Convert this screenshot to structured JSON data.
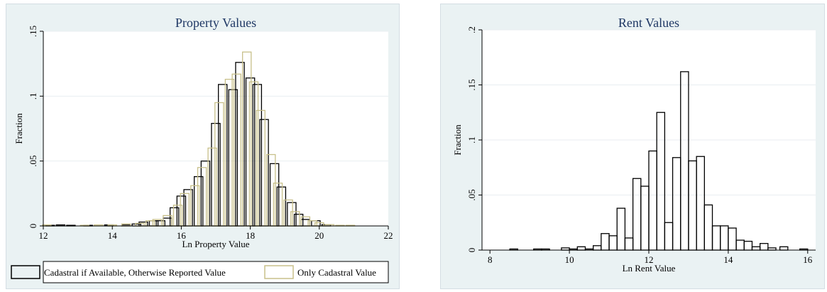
{
  "chart_data": [
    {
      "type": "bar",
      "title": "Property Values",
      "xlabel": "Ln Property Value",
      "ylabel": "Fraction",
      "xlim": [
        12,
        22
      ],
      "ylim": [
        0,
        0.15
      ],
      "xticks": [
        "12",
        "14",
        "16",
        "18",
        "20",
        "22"
      ],
      "yticks": [
        ".15",
        ".1",
        ".05",
        "0"
      ],
      "xtick_values": [
        12,
        14,
        16,
        18,
        20,
        22
      ],
      "ytick_values": [
        0.15,
        0.1,
        0.05,
        0
      ],
      "grid": true,
      "legend": "bottom",
      "series": [
        {
          "name": "Cadastral if Available, Otherwise Reported Value",
          "color": "#000000",
          "bin_width": 0.25,
          "x": [
            12.2,
            12.5,
            12.8,
            13.3,
            13.9,
            14.4,
            14.7,
            14.9,
            15.2,
            15.4,
            15.6,
            15.8,
            16.0,
            16.2,
            16.5,
            16.7,
            17.0,
            17.2,
            17.5,
            17.7,
            18.0,
            18.2,
            18.4,
            18.7,
            18.9,
            19.2,
            19.4,
            19.6,
            19.9,
            20.2
          ],
          "values": [
            0.0005,
            0.0008,
            0.0005,
            0.0005,
            0.0008,
            0.001,
            0.0015,
            0.003,
            0.004,
            0.004,
            0.006,
            0.014,
            0.023,
            0.028,
            0.038,
            0.05,
            0.079,
            0.109,
            0.105,
            0.126,
            0.114,
            0.109,
            0.082,
            0.048,
            0.03,
            0.018,
            0.009,
            0.005,
            0.004,
            0.001
          ]
        },
        {
          "name": "Only Cadastral Value",
          "color": "#c8c08a",
          "bin_width": 0.25,
          "x": [
            12.1,
            13.2,
            13.6,
            14.0,
            14.4,
            14.8,
            15.1,
            15.3,
            15.6,
            15.9,
            16.1,
            16.4,
            16.6,
            16.9,
            17.1,
            17.4,
            17.6,
            17.9,
            18.1,
            18.3,
            18.6,
            18.8,
            19.1,
            19.3,
            19.6,
            19.8,
            20.0,
            20.3,
            20.6,
            20.9
          ],
          "values": [
            0.0008,
            0.0005,
            0.0008,
            0.0008,
            0.0015,
            0.002,
            0.004,
            0.005,
            0.008,
            0.016,
            0.025,
            0.031,
            0.045,
            0.06,
            0.095,
            0.113,
            0.117,
            0.134,
            0.111,
            0.089,
            0.055,
            0.033,
            0.02,
            0.011,
            0.007,
            0.004,
            0.0025,
            0.001,
            0.0005,
            0.0005
          ]
        }
      ]
    },
    {
      "type": "bar",
      "title": "Rent Values",
      "xlabel": "Ln Rent Value",
      "ylabel": "Fraction",
      "xlim": [
        7.8,
        16.2
      ],
      "ylim": [
        0,
        0.2
      ],
      "xticks": [
        "8",
        "10",
        "12",
        "14",
        "16"
      ],
      "yticks": [
        ".2",
        ".15",
        ".1",
        ".05",
        "0"
      ],
      "xtick_values": [
        8,
        10,
        12,
        14,
        16
      ],
      "ytick_values": [
        0.2,
        0.15,
        0.1,
        0.05,
        0
      ],
      "grid": true,
      "series": [
        {
          "color": "#000000",
          "bin_width": 0.2,
          "x": [
            8.6,
            9.2,
            9.4,
            9.9,
            10.1,
            10.3,
            10.5,
            10.7,
            10.9,
            11.1,
            11.3,
            11.5,
            11.7,
            11.9,
            12.1,
            12.3,
            12.5,
            12.7,
            12.9,
            13.1,
            13.3,
            13.5,
            13.7,
            13.9,
            14.1,
            14.3,
            14.5,
            14.7,
            14.9,
            15.1,
            15.4,
            15.9
          ],
          "values": [
            0.001,
            0.001,
            0.001,
            0.002,
            0.001,
            0.003,
            0.001,
            0.004,
            0.015,
            0.013,
            0.038,
            0.011,
            0.065,
            0.058,
            0.09,
            0.125,
            0.025,
            0.084,
            0.162,
            0.081,
            0.085,
            0.041,
            0.022,
            0.022,
            0.02,
            0.009,
            0.008,
            0.003,
            0.006,
            0.002,
            0.003,
            0.001
          ]
        }
      ]
    }
  ]
}
